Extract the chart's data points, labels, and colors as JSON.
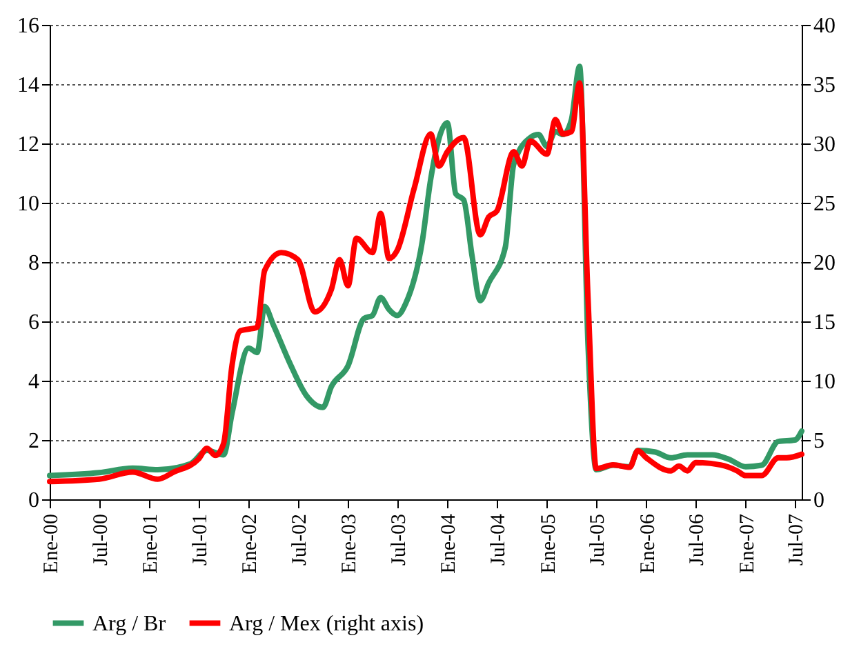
{
  "chart_data": {
    "type": "line",
    "xlim": [
      "2000-01-01",
      "2007-07-26"
    ],
    "xticks": [
      {
        "value": "2000-01",
        "label": "Ene-00"
      },
      {
        "value": "2000-07",
        "label": "Jul-00"
      },
      {
        "value": "2001-01",
        "label": "Ene-01"
      },
      {
        "value": "2001-07",
        "label": "Jul-01"
      },
      {
        "value": "2002-01",
        "label": "Ene-02"
      },
      {
        "value": "2002-07",
        "label": "Jul-02"
      },
      {
        "value": "2003-01",
        "label": "Ene-03"
      },
      {
        "value": "2003-07",
        "label": "Jul-03"
      },
      {
        "value": "2004-01",
        "label": "Ene-04"
      },
      {
        "value": "2004-07",
        "label": "Jul-04"
      },
      {
        "value": "2005-01",
        "label": "Ene-05"
      },
      {
        "value": "2005-07",
        "label": "Jul-05"
      },
      {
        "value": "2006-01",
        "label": "Ene-06"
      },
      {
        "value": "2006-07",
        "label": "Jul-06"
      },
      {
        "value": "2007-01",
        "label": "Ene-07"
      },
      {
        "value": "2007-07",
        "label": "Jul-07"
      }
    ],
    "ylim": [
      0,
      16
    ],
    "yticks": [
      0,
      2,
      4,
      6,
      8,
      10,
      12,
      14,
      16
    ],
    "y2lim": [
      0,
      40
    ],
    "y2ticks": [
      0,
      5,
      10,
      15,
      20,
      25,
      30,
      35,
      40
    ],
    "grid": "y",
    "legend": "bottom",
    "line_style": "solid",
    "series": [
      {
        "name": "Arg / Br",
        "color": "#339966",
        "x": [
          "2000-01",
          "2000-07",
          "2000-11",
          "2001-02",
          "2001-06",
          "2001-08",
          "2001-10",
          "2001-11",
          "2002-01",
          "2002-02",
          "2002-03",
          "2002-04",
          "2002-06",
          "2002-08",
          "2002-10",
          "2002-11",
          "2003-01",
          "2003-03",
          "2003-04",
          "2003-05",
          "2003-06",
          "2003-07",
          "2003-08",
          "2003-10",
          "2003-11",
          "2004-01",
          "2004-02",
          "2004-03",
          "2004-04",
          "2004-05",
          "2004-06",
          "2004-08",
          "2004-09",
          "2004-11",
          "2004-12",
          "2005-01",
          "2005-02",
          "2005-03",
          "2005-04",
          "2005-05",
          "2005-06",
          "2005-07",
          "2005-09",
          "2005-11",
          "2005-12",
          "2006-02",
          "2006-04",
          "2006-06",
          "2006-09",
          "2006-11",
          "2007-01",
          "2007-03",
          "2007-05",
          "2007-07",
          "2007-07-26"
        ],
        "values": [
          0.8,
          0.9,
          1.05,
          1.0,
          1.2,
          1.65,
          1.5,
          2.9,
          5.1,
          4.95,
          6.5,
          5.9,
          4.6,
          3.5,
          3.1,
          3.8,
          4.5,
          6.1,
          6.2,
          6.8,
          6.4,
          6.2,
          6.6,
          8.7,
          10.8,
          12.7,
          10.3,
          10.1,
          8.2,
          6.7,
          7.3,
          8.5,
          11.3,
          12.2,
          12.3,
          11.9,
          12.4,
          12.3,
          12.8,
          14.6,
          5.2,
          1.0,
          1.15,
          1.1,
          1.65,
          1.6,
          1.4,
          1.5,
          1.5,
          1.35,
          1.1,
          1.15,
          1.95,
          2.0,
          2.3
        ]
      },
      {
        "name": "Arg / Mex (right axis)",
        "color": "#ff0000",
        "axis": "y2",
        "x": [
          "2000-01",
          "2000-07",
          "2000-11",
          "2001-02",
          "2001-04",
          "2001-07",
          "2001-08",
          "2001-09",
          "2001-10",
          "2001-11",
          "2001-12",
          "2002-02",
          "2002-03",
          "2002-05",
          "2002-07",
          "2002-09",
          "2002-11",
          "2002-12",
          "2003-01",
          "2003-02",
          "2003-04",
          "2003-05",
          "2003-06",
          "2003-07",
          "2003-09",
          "2003-11",
          "2003-12",
          "2004-01",
          "2004-03",
          "2004-05",
          "2004-06",
          "2004-07",
          "2004-09",
          "2004-10",
          "2004-11",
          "2005-01",
          "2005-02",
          "2005-03",
          "2005-04",
          "2005-05",
          "2005-06",
          "2005-07",
          "2005-09",
          "2005-11",
          "2005-12",
          "2006-01",
          "2006-04",
          "2006-05",
          "2006-06",
          "2006-07",
          "2006-10",
          "2006-12",
          "2007-01",
          "2007-03",
          "2007-05",
          "2007-06",
          "2007-07-26"
        ],
        "values": [
          1.5,
          1.7,
          2.3,
          1.7,
          2.3,
          3.4,
          4.3,
          3.7,
          4.7,
          11.3,
          14.2,
          14.5,
          19.3,
          20.8,
          20.2,
          15.8,
          17.7,
          20.2,
          18.0,
          22.0,
          20.8,
          24.1,
          20.3,
          21.0,
          26.2,
          30.8,
          28.1,
          29.3,
          30.5,
          22.3,
          23.8,
          24.3,
          29.3,
          28.1,
          30.2,
          29.1,
          32.0,
          30.8,
          31.0,
          35.1,
          16.9,
          2.6,
          2.9,
          2.7,
          4.1,
          3.5,
          2.4,
          2.8,
          2.4,
          3.1,
          2.9,
          2.4,
          2.0,
          2.0,
          3.5,
          3.5,
          3.8
        ]
      }
    ]
  }
}
